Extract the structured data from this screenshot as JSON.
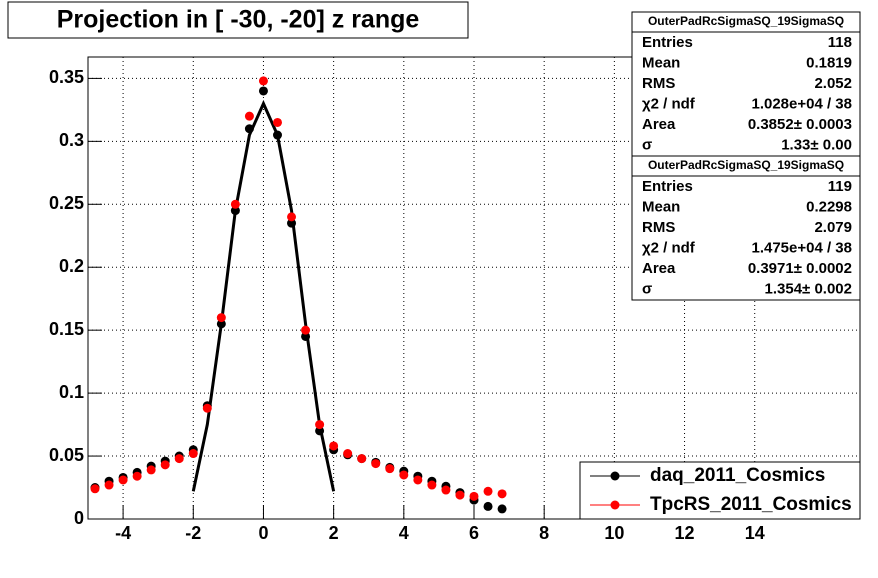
{
  "chart_data": {
    "type": "scatter",
    "title": "Projection in [ -30, -20] z range",
    "xlim": [
      -5,
      17
    ],
    "ylim": [
      0,
      0.367
    ],
    "xticks": [
      -4,
      -2,
      0,
      2,
      4,
      6,
      8,
      10,
      12,
      14
    ],
    "yticks": [
      0,
      0.05,
      0.1,
      0.15,
      0.2,
      0.25,
      0.3,
      0.35
    ],
    "grid": true,
    "legend": "bottom-right",
    "x": [
      -4.8,
      -4.4,
      -4.0,
      -3.6,
      -3.2,
      -2.8,
      -2.4,
      -2.0,
      -1.6,
      -1.2,
      -0.8,
      -0.4,
      0,
      0.4,
      0.8,
      1.2,
      1.6,
      2.0,
      2.4,
      2.8,
      3.2,
      3.6,
      4.0,
      4.4,
      4.8,
      5.2,
      5.6,
      6.0,
      6.4,
      6.8
    ],
    "series": [
      {
        "name": "daq_2011_Cosmics",
        "color": "#000000",
        "values": [
          0.025,
          0.03,
          0.033,
          0.037,
          0.042,
          0.046,
          0.05,
          0.055,
          0.09,
          0.155,
          0.245,
          0.31,
          0.34,
          0.305,
          0.235,
          0.145,
          0.07,
          0.055,
          0.051,
          0.048,
          0.045,
          0.041,
          0.038,
          0.034,
          0.03,
          0.026,
          0.021,
          0.015,
          0.01,
          0.008
        ]
      },
      {
        "name": "TpcRS_2011_Cosmics",
        "color": "#ff0000",
        "values": [
          0.024,
          0.027,
          0.031,
          0.034,
          0.039,
          0.043,
          0.048,
          0.052,
          0.088,
          0.16,
          0.25,
          0.32,
          0.348,
          0.315,
          0.24,
          0.15,
          0.075,
          0.058,
          0.052,
          0.048,
          0.044,
          0.04,
          0.035,
          0.031,
          0.027,
          0.023,
          0.019,
          0.018,
          0.022,
          0.02
        ]
      }
    ],
    "fit": {
      "color": "#000000",
      "x": [
        -2,
        -1.6,
        -1.2,
        -0.8,
        -0.4,
        0,
        0.4,
        0.8,
        1.2,
        1.6,
        2
      ],
      "values": [
        0.022,
        0.075,
        0.155,
        0.245,
        0.305,
        0.33,
        0.305,
        0.245,
        0.155,
        0.075,
        0.022
      ]
    },
    "stats": [
      {
        "title": "OuterPadRcSigmaSQ_19SigmaSQ",
        "rows": [
          [
            "Entries",
            "118"
          ],
          [
            "Mean",
            "0.1819"
          ],
          [
            "RMS",
            "2.052"
          ],
          [
            "χ2 / ndf",
            "1.028e+04 / 38"
          ],
          [
            "Area",
            "0.3852± 0.0003"
          ],
          [
            "σ",
            "1.33± 0.00"
          ]
        ]
      },
      {
        "title": "OuterPadRcSigmaSQ_19SigmaSQ",
        "rows": [
          [
            "Entries",
            "119"
          ],
          [
            "Mean",
            "0.2298"
          ],
          [
            "RMS",
            "2.079"
          ],
          [
            "χ2 / ndf",
            "1.475e+04 / 38"
          ],
          [
            "Area",
            "0.3971± 0.0002"
          ],
          [
            "σ",
            "1.354± 0.002"
          ]
        ]
      }
    ]
  }
}
